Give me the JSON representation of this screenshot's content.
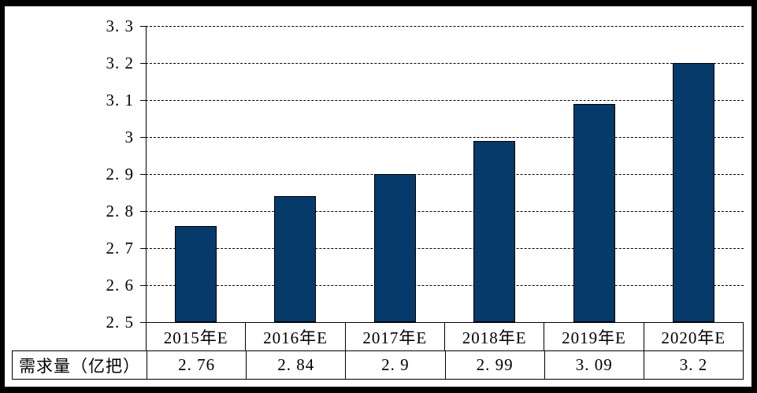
{
  "chart_data": {
    "type": "bar",
    "title": "",
    "categories": [
      "2015年E",
      "2016年E",
      "2017年E",
      "2018年E",
      "2019年E",
      "2020年E"
    ],
    "series": [
      {
        "name": "需求量（亿把）",
        "values": [
          2.76,
          2.84,
          2.9,
          2.99,
          3.09,
          3.2
        ]
      }
    ],
    "ylim": [
      2.5,
      3.3
    ],
    "yticks": [
      3.3,
      3.2,
      3.1,
      3,
      2.9,
      2.8,
      2.7,
      2.6,
      2.5
    ],
    "xlabel": "",
    "ylabel": "",
    "grid": "horizontal-dashed",
    "legend": "none",
    "bar_color": "#063A6B",
    "bar_border_color": "#000000",
    "background_color": "#FFFFFF",
    "frame_color": "#000000",
    "data_table": {
      "row_header": "需求量（亿把）"
    }
  }
}
